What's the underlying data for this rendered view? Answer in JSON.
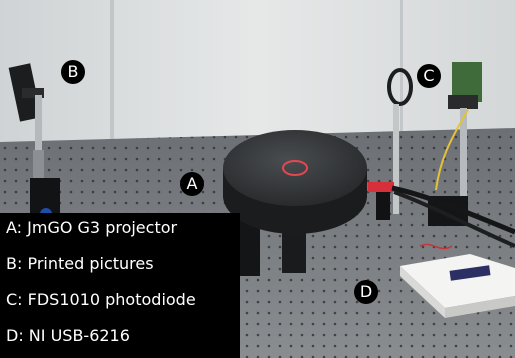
{
  "markers": {
    "a": "A",
    "b": "B",
    "c": "C",
    "d": "D"
  },
  "legend": {
    "items": [
      "A: JmGO G3 projector",
      "B: Printed pictures",
      "C: FDS1010 photodiode",
      "D: NI USB-6216"
    ]
  }
}
